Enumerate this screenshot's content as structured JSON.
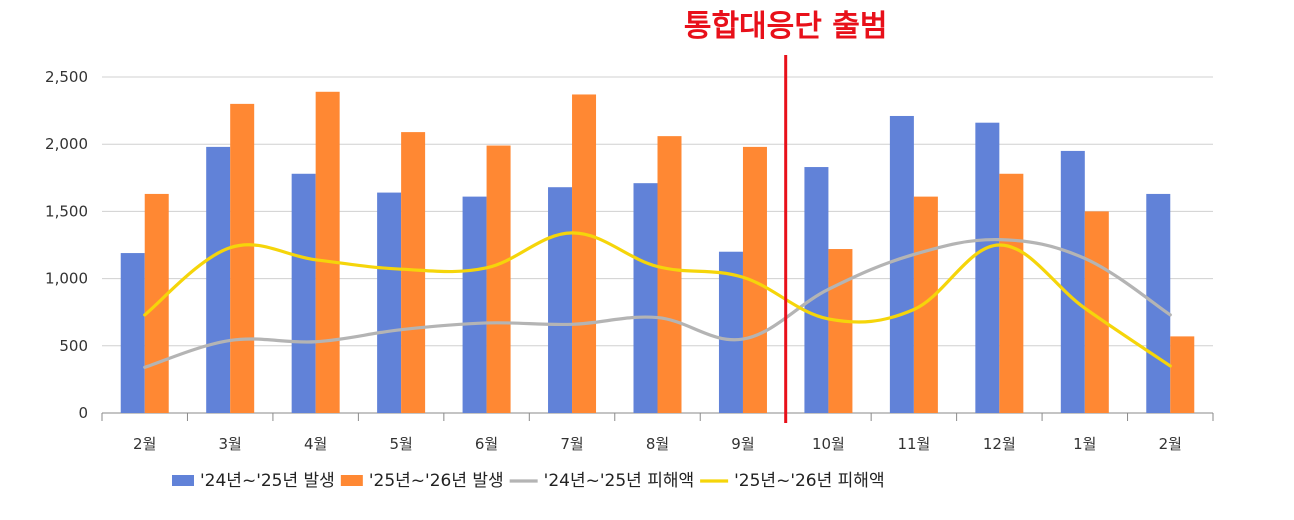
{
  "chart_data": {
    "type": "bar",
    "categories": [
      "2월",
      "3월",
      "4월",
      "5월",
      "6월",
      "7월",
      "8월",
      "9월",
      "10월",
      "11월",
      "12월",
      "1월",
      "2월"
    ],
    "ylim": [
      0,
      2500
    ],
    "yticks": [
      0,
      500,
      1000,
      1500,
      2000,
      2500
    ],
    "ytick_labels": [
      "0",
      "500",
      "1,000",
      "1,500",
      "2,000",
      "2,500"
    ],
    "grid": true,
    "legend_position": "bottom",
    "annotation": {
      "text": "통합대응단 출범",
      "between": [
        "9월",
        "10월"
      ],
      "color": "#e8101a"
    },
    "series": [
      {
        "name": "'24년~'25년 발생",
        "kind": "bar",
        "color": "#6182d8",
        "values": [
          1190,
          1980,
          1780,
          1640,
          1610,
          1680,
          1710,
          1200,
          1830,
          2210,
          2160,
          1950,
          1630
        ]
      },
      {
        "name": "'25년~'26년 발생",
        "kind": "bar",
        "color": "#ff8833",
        "values": [
          1630,
          2300,
          2390,
          2090,
          1990,
          2370,
          2060,
          1980,
          1220,
          1610,
          1780,
          1500,
          570
        ]
      },
      {
        "name": "'24년~'25년 피해액",
        "kind": "line",
        "color": "#b4b4b4",
        "values": [
          340,
          540,
          530,
          620,
          670,
          660,
          710,
          550,
          920,
          1180,
          1290,
          1150,
          730
        ]
      },
      {
        "name": "'25년~'26년 피해액",
        "kind": "line",
        "color": "#f5d50a",
        "values": [
          730,
          1230,
          1140,
          1070,
          1080,
          1340,
          1090,
          1010,
          700,
          770,
          1250,
          780,
          350
        ]
      }
    ]
  }
}
